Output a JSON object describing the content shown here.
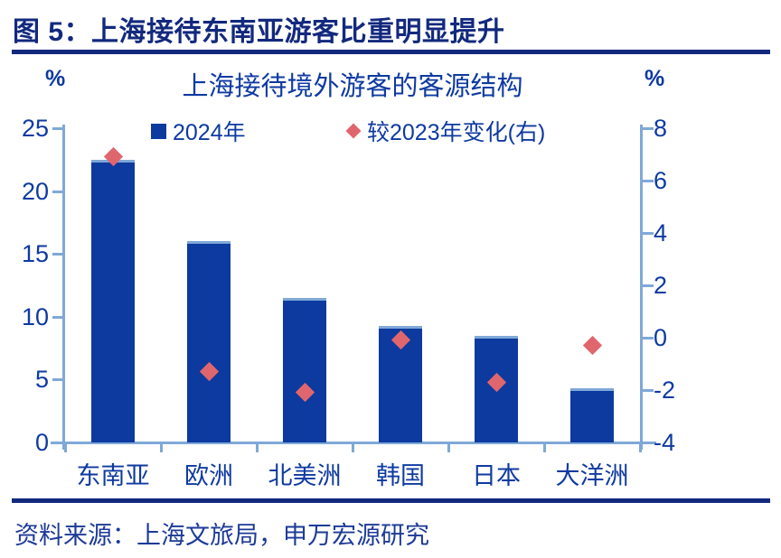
{
  "figure": {
    "caption": "图 5：上海接待东南亚游客比重明显提升",
    "source": "资料来源：上海文旅局，申万宏源研究"
  },
  "chart_data": {
    "type": "bar",
    "title": "上海接待境外游客的客源结构",
    "categories": [
      "东南亚",
      "欧洲",
      "北美洲",
      "韩国",
      "日本",
      "大洋洲"
    ],
    "series": [
      {
        "name": "2024年",
        "type": "bar",
        "axis": "left",
        "values": [
          22.5,
          16.0,
          11.5,
          9.3,
          8.5,
          4.3
        ],
        "color": "#0d3a9e"
      },
      {
        "name": "较2023年变化(右)",
        "type": "scatter",
        "marker": "diamond",
        "axis": "right",
        "values": [
          6.9,
          -1.3,
          -2.1,
          -0.1,
          -1.7,
          -0.3
        ],
        "color": "#e0666e"
      }
    ],
    "left_axis": {
      "unit": "%",
      "min": 0,
      "max": 25,
      "ticks": [
        0,
        5,
        10,
        15,
        20,
        25
      ]
    },
    "right_axis": {
      "unit": "%",
      "min": -4,
      "max": 8,
      "ticks": [
        -4,
        -2,
        0,
        2,
        4,
        6,
        8
      ]
    },
    "legend_position": "top",
    "grid": false,
    "colors": {
      "bar_fill": "#0d3a9e",
      "diamond_fill": "#e0666e",
      "axis_line": "#7fa8d8",
      "text_navy": "#0e3aa1",
      "header_navy": "#13297e"
    }
  }
}
